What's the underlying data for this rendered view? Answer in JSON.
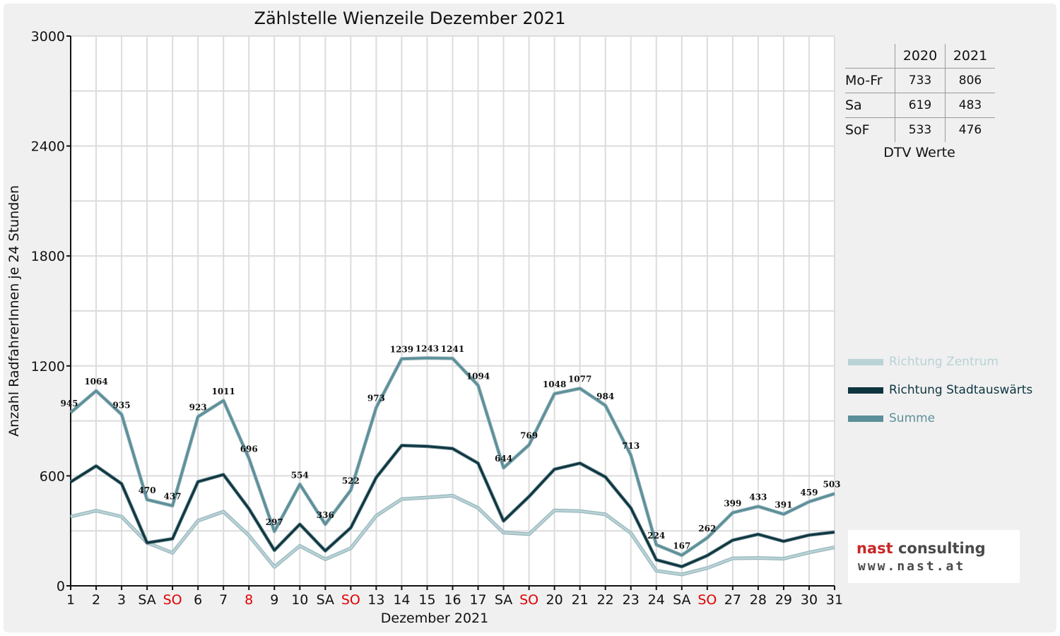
{
  "chart_data": {
    "type": "line",
    "title": "Zählstelle Wienzeile Dezember 2021",
    "xlabel": "Dezember 2021",
    "ylabel": "Anzahl RadfahrerInnen je 24 Stunden",
    "ylim": [
      0,
      3000
    ],
    "yticks": [
      "0",
      "600",
      "1200",
      "1800",
      "2400",
      "3000"
    ],
    "grid": true,
    "legend_position": "right",
    "categories": [
      "1",
      "2",
      "3",
      "SA",
      "SO",
      "6",
      "7",
      "8",
      "9",
      "10",
      "SA",
      "SO",
      "13",
      "14",
      "15",
      "16",
      "17",
      "SA",
      "SO",
      "20",
      "21",
      "22",
      "23",
      "24",
      "SA",
      "SO",
      "27",
      "28",
      "29",
      "30",
      "31"
    ],
    "red_categories": [
      4,
      7,
      11,
      18,
      25
    ],
    "series": [
      {
        "name": "Richtung Zentrum",
        "color": "#b9d2d6",
        "values": [
          378,
          410,
          378,
          235,
          180,
          355,
          405,
          275,
          103,
          218,
          145,
          205,
          382,
          473,
          482,
          492,
          425,
          290,
          282,
          412,
          408,
          390,
          288,
          82,
          62,
          97,
          150,
          152,
          148,
          182,
          210
        ]
      },
      {
        "name": "Richtung Stadtauswärts",
        "color": "#0e3540",
        "values": [
          567,
          654,
          557,
          235,
          257,
          568,
          607,
          421,
          194,
          336,
          191,
          317,
          591,
          766,
          761,
          749,
          669,
          354,
          487,
          636,
          669,
          594,
          425,
          142,
          105,
          165,
          249,
          281,
          243,
          277,
          293
        ]
      },
      {
        "name": "Summe",
        "color": "#5c8f99",
        "labelled": true,
        "values": [
          945,
          1064,
          935,
          470,
          437,
          923,
          1011,
          696,
          297,
          554,
          336,
          522,
          973,
          1239,
          1243,
          1241,
          1094,
          644,
          769,
          1048,
          1077,
          984,
          713,
          224,
          167,
          262,
          399,
          433,
          391,
          459,
          503
        ]
      }
    ]
  },
  "dtv_table": {
    "columns": [
      "2020",
      "2021"
    ],
    "rows": [
      {
        "label": "Mo-Fr",
        "v2020": "733",
        "v2021": "806"
      },
      {
        "label": "Sa",
        "v2020": "619",
        "v2021": "483"
      },
      {
        "label": "SoF",
        "v2020": "533",
        "v2021": "476"
      }
    ],
    "caption": "DTV Werte"
  },
  "logo": {
    "brand_part1": "nast",
    "brand_part2": " consulting",
    "url": "www.nast.at"
  }
}
